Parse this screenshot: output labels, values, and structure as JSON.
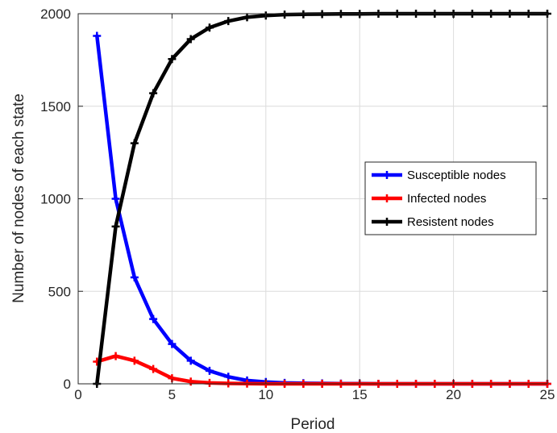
{
  "chart_data": {
    "type": "line",
    "xlabel": "Period",
    "ylabel": "Number of nodes of each state",
    "xlim": [
      0,
      25
    ],
    "ylim": [
      0,
      2000
    ],
    "xticks": [
      0,
      5,
      10,
      15,
      20,
      25
    ],
    "yticks": [
      0,
      500,
      1000,
      1500,
      2000
    ],
    "grid": true,
    "legend_position": "center-right",
    "x": [
      1,
      2,
      3,
      4,
      5,
      6,
      7,
      8,
      9,
      10,
      11,
      12,
      13,
      14,
      15,
      16,
      17,
      18,
      19,
      20,
      21,
      22,
      23,
      24,
      25
    ],
    "series": [
      {
        "name": "Susceptible nodes",
        "color": "#0000ff",
        "values": [
          1880,
          1000,
          575,
          350,
          215,
          125,
          70,
          38,
          18,
          10,
          5,
          3,
          2,
          1,
          1,
          0,
          0,
          0,
          0,
          0,
          0,
          0,
          0,
          0,
          0
        ]
      },
      {
        "name": "Infected nodes",
        "color": "#ff0000",
        "values": [
          120,
          150,
          125,
          80,
          30,
          12,
          5,
          2,
          1,
          0,
          0,
          0,
          0,
          0,
          0,
          0,
          0,
          0,
          0,
          0,
          0,
          0,
          0,
          0,
          0
        ]
      },
      {
        "name": "Resistent nodes",
        "color": "#000000",
        "values": [
          0,
          850,
          1300,
          1570,
          1755,
          1863,
          1925,
          1960,
          1981,
          1990,
          1995,
          1997,
          1998,
          1999,
          1999,
          2000,
          2000,
          2000,
          2000,
          2000,
          2000,
          2000,
          2000,
          2000,
          2000
        ]
      }
    ]
  }
}
